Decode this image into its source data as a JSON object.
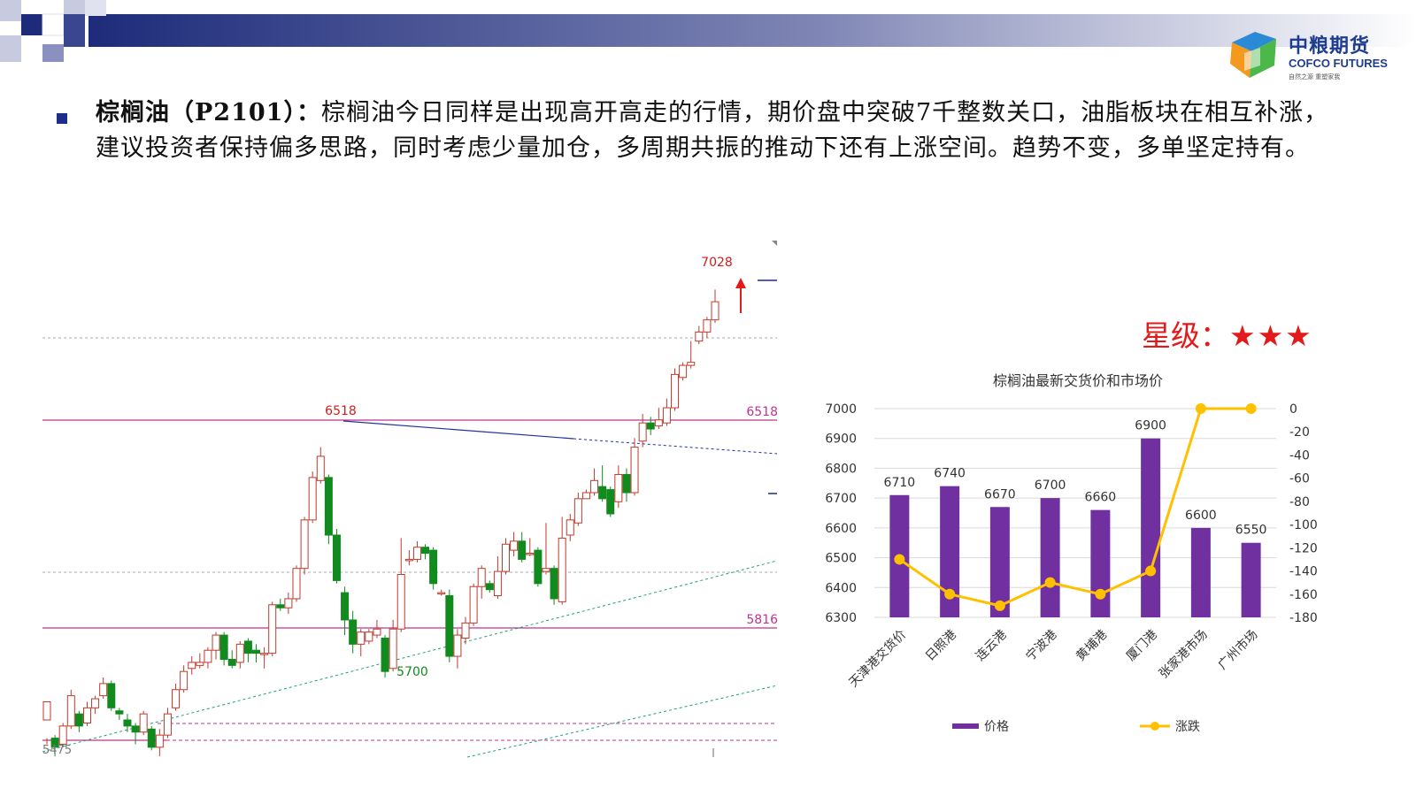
{
  "brand": {
    "cn": "中粮期货",
    "en": "COFCO FUTURES",
    "slogan": "自然之源  重塑家我"
  },
  "commentary": {
    "title": "棕榈油（P2101）：",
    "body": "棕榈油今日同样是出现高开高走的行情，期价盘中突破7千整数关口，油脂板块在相互补涨，建议投资者保持偏多思路，同时考虑少量加仓，多周期共振的推动下还有上涨空间。趋势不变，多单坚定持有。"
  },
  "rating": {
    "label": "星级：",
    "stars": "★★★"
  },
  "colors": {
    "up": "#c0392b",
    "down": "#118a1e",
    "purple_line": "#c0338b",
    "bar": "#7030a0",
    "line": "#ffc000",
    "red_text": "#e21a1a"
  },
  "chart_data": [
    {
      "type": "candlestick",
      "annotations": [
        {
          "text": "7028",
          "value": 7028,
          "color": "red"
        },
        {
          "text": "6518",
          "value": 6518,
          "color": "red"
        },
        {
          "text": "6518",
          "value": 6518,
          "color": "purple",
          "placement": "right"
        },
        {
          "text": "5816",
          "value": 5816,
          "color": "purple",
          "placement": "right"
        },
        {
          "text": "5700",
          "value": 5700,
          "color": "green"
        },
        {
          "text": "5475",
          "value": 5475,
          "color": "gray"
        }
      ],
      "horizontal_levels": [
        6518,
        5816
      ],
      "ylim": [
        5480,
        7120
      ],
      "candles": [
        [
          5620,
          5680,
          5560,
          5540
        ],
        [
          5560,
          5530,
          5570,
          5500
        ],
        [
          5540,
          5600,
          5610,
          5530
        ],
        [
          5600,
          5700,
          5720,
          5590
        ],
        [
          5640,
          5600,
          5650,
          5580
        ],
        [
          5610,
          5660,
          5680,
          5600
        ],
        [
          5660,
          5690,
          5700,
          5640
        ],
        [
          5700,
          5740,
          5760,
          5690
        ],
        [
          5740,
          5660,
          5750,
          5650
        ],
        [
          5650,
          5640,
          5660,
          5620
        ],
        [
          5620,
          5600,
          5640,
          5580
        ],
        [
          5600,
          5580,
          5610,
          5540
        ],
        [
          5580,
          5640,
          5650,
          5570
        ],
        [
          5590,
          5530,
          5600,
          5520
        ],
        [
          5530,
          5570,
          5590,
          5500
        ],
        [
          5570,
          5640,
          5660,
          5560
        ],
        [
          5660,
          5720,
          5740,
          5650
        ],
        [
          5720,
          5780,
          5800,
          5710
        ],
        [
          5790,
          5810,
          5830,
          5770
        ],
        [
          5800,
          5810,
          5840,
          5790
        ],
        [
          5810,
          5850,
          5860,
          5790
        ],
        [
          5850,
          5900,
          5910,
          5820
        ],
        [
          5900,
          5820,
          5910,
          5800
        ],
        [
          5820,
          5800,
          5850,
          5790
        ],
        [
          5810,
          5870,
          5880,
          5790
        ],
        [
          5880,
          5840,
          5890,
          5810
        ],
        [
          5850,
          5840,
          5870,
          5810
        ],
        [
          5840,
          5840,
          5860,
          5790
        ],
        [
          5840,
          6000,
          6010,
          5830
        ],
        [
          6000,
          5990,
          6020,
          5980
        ],
        [
          5990,
          6020,
          6040,
          5970
        ],
        [
          6020,
          6120,
          6130,
          6010
        ],
        [
          6120,
          6280,
          6290,
          6100
        ],
        [
          6280,
          6420,
          6440,
          6270
        ],
        [
          6410,
          6490,
          6520,
          6400
        ],
        [
          6420,
          6230,
          6430,
          6200
        ],
        [
          6230,
          6080,
          6250,
          6070
        ],
        [
          6040,
          5950,
          6060,
          5900
        ],
        [
          5950,
          5870,
          5980,
          5840
        ],
        [
          5870,
          5910,
          5920,
          5830
        ],
        [
          5880,
          5910,
          5920,
          5870
        ],
        [
          5900,
          5920,
          5950,
          5890
        ],
        [
          5890,
          5780,
          5900,
          5760
        ],
        [
          5790,
          5920,
          5950,
          5780
        ],
        [
          5920,
          6100,
          6220,
          5910
        ],
        [
          6150,
          6150,
          6180,
          6130
        ],
        [
          6150,
          6190,
          6210,
          6140
        ],
        [
          6190,
          6170,
          6200,
          6150
        ],
        [
          6180,
          6070,
          6190,
          6050
        ],
        [
          6040,
          6040,
          6050,
          6030
        ],
        [
          6030,
          5830,
          6050,
          5810
        ],
        [
          5830,
          5900,
          5920,
          5790
        ],
        [
          5890,
          5940,
          5960,
          5870
        ],
        [
          5940,
          6060,
          6070,
          5930
        ],
        [
          6060,
          6120,
          6130,
          6020
        ],
        [
          6070,
          6050,
          6080,
          6040
        ],
        [
          6030,
          6110,
          6160,
          6020
        ],
        [
          6110,
          6200,
          6220,
          6100
        ],
        [
          6180,
          6210,
          6240,
          6160
        ],
        [
          6210,
          6150,
          6240,
          6140
        ],
        [
          6170,
          6170,
          6220,
          6160
        ],
        [
          6180,
          6070,
          6190,
          6060
        ],
        [
          6110,
          6120,
          6270,
          6100
        ],
        [
          6120,
          6020,
          6130,
          6000
        ],
        [
          6010,
          6220,
          6290,
          6000
        ],
        [
          6230,
          6280,
          6300,
          6210
        ],
        [
          6270,
          6350,
          6370,
          6260
        ],
        [
          6350,
          6370,
          6380,
          6350
        ],
        [
          6370,
          6410,
          6450,
          6360
        ],
        [
          6390,
          6350,
          6460,
          6340
        ],
        [
          6380,
          6300,
          6390,
          6290
        ],
        [
          6340,
          6430,
          6460,
          6320
        ],
        [
          6430,
          6370,
          6450,
          6340
        ],
        [
          6370,
          6520,
          6550,
          6360
        ],
        [
          6540,
          6600,
          6630,
          6520
        ],
        [
          6600,
          6580,
          6620,
          6560
        ],
        [
          6590,
          6610,
          6650,
          6580
        ],
        [
          6600,
          6650,
          6680,
          6590
        ],
        [
          6650,
          6760,
          6780,
          6640
        ],
        [
          6750,
          6790,
          6800,
          6740
        ],
        [
          6790,
          6800,
          6870,
          6780
        ],
        [
          6870,
          6900,
          6920,
          6860
        ],
        [
          6900,
          6940,
          6950,
          6880
        ],
        [
          6940,
          7000,
          7040,
          6930
        ]
      ]
    },
    {
      "type": "bar",
      "title": "棕榈油最新交货价和市场价",
      "categories": [
        "天津港交货价",
        "日照港",
        "连云港",
        "宁波港",
        "黄埔港",
        "厦门港",
        "张家港市场",
        "广州市场"
      ],
      "series": [
        {
          "name": "价格",
          "type": "bar",
          "axis": "left",
          "values": [
            6710,
            6740,
            6670,
            6700,
            6660,
            6900,
            6600,
            6550
          ],
          "data_labels": [
            "6710",
            "6740",
            "6670",
            "6700",
            "6660",
            "6900",
            "6600",
            "6550"
          ]
        },
        {
          "name": "涨跌",
          "type": "line",
          "axis": "right",
          "values": [
            -130,
            -160,
            -170,
            -150,
            -160,
            -140,
            0,
            0
          ]
        }
      ],
      "left_axis": {
        "min": 6300,
        "max": 7000,
        "ticks": [
          "7000",
          "6900",
          "6800",
          "6700",
          "6600",
          "6500",
          "6400",
          "6300"
        ]
      },
      "right_axis": {
        "min": -180,
        "max": 0,
        "ticks": [
          "0",
          "-20",
          "-40",
          "-60",
          "-80",
          "-100",
          "-120",
          "-140",
          "-160",
          "-180"
        ]
      },
      "legend": {
        "placement": "bottom"
      }
    }
  ]
}
